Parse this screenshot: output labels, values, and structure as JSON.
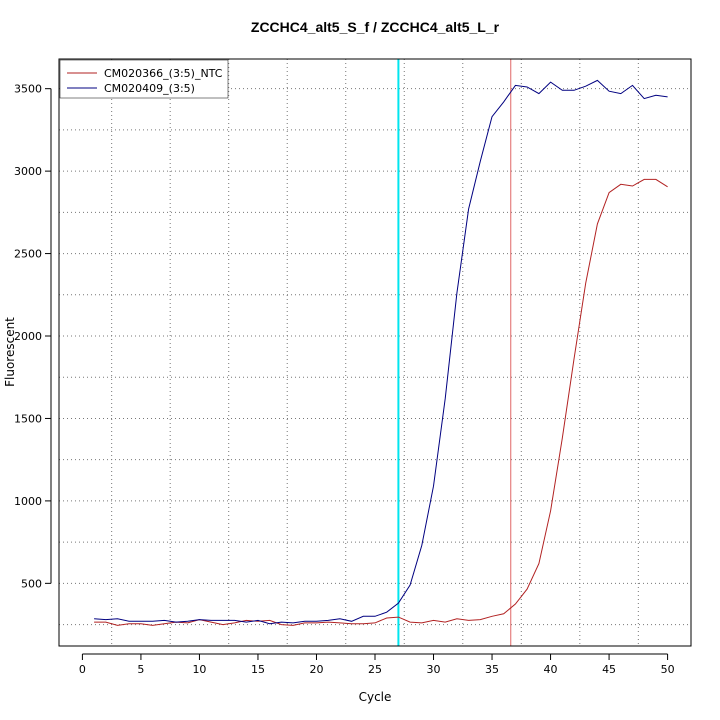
{
  "chart_data": {
    "type": "line",
    "title": "ZCCHC4_alt5_S_f / ZCCHC4_alt5_L_r",
    "xlabel": "Cycle",
    "ylabel": "Fluorescent",
    "xlim": [
      -2,
      52
    ],
    "ylim": [
      120,
      3680
    ],
    "xticks": [
      0,
      5,
      10,
      15,
      20,
      25,
      30,
      35,
      40,
      45,
      50
    ],
    "yticks": [
      500,
      1000,
      1500,
      2000,
      2500,
      3000,
      3500
    ],
    "grid": true,
    "legend_position": "top-left",
    "series": [
      {
        "name": "CM020366_(3:5)_NTC",
        "color": "#b22222",
        "x": [
          1,
          2,
          3,
          4,
          5,
          6,
          7,
          8,
          9,
          10,
          11,
          12,
          13,
          14,
          15,
          16,
          17,
          18,
          19,
          20,
          21,
          22,
          23,
          24,
          25,
          26,
          27,
          28,
          29,
          30,
          31,
          32,
          33,
          34,
          35,
          36,
          37,
          38,
          39,
          40,
          41,
          42,
          43,
          44,
          45,
          46,
          47,
          48,
          49,
          50
        ],
        "values": [
          265,
          265,
          245,
          255,
          255,
          245,
          255,
          265,
          260,
          280,
          265,
          250,
          260,
          275,
          270,
          275,
          250,
          245,
          260,
          260,
          265,
          260,
          255,
          255,
          260,
          290,
          295,
          265,
          260,
          275,
          265,
          285,
          275,
          280,
          300,
          315,
          375,
          465,
          620,
          940,
          1380,
          1860,
          2320,
          2680,
          2870,
          2920,
          2910,
          2950,
          2950,
          2905
        ]
      },
      {
        "name": "CM020409_(3:5)",
        "color": "#000080",
        "x": [
          1,
          2,
          3,
          4,
          5,
          6,
          7,
          8,
          9,
          10,
          11,
          12,
          13,
          14,
          15,
          16,
          17,
          18,
          19,
          20,
          21,
          22,
          23,
          24,
          25,
          26,
          27,
          28,
          29,
          30,
          31,
          32,
          33,
          34,
          35,
          36,
          37,
          38,
          39,
          40,
          41,
          42,
          43,
          44,
          45,
          46,
          47,
          48,
          49,
          50
        ],
        "values": [
          285,
          280,
          285,
          270,
          270,
          270,
          275,
          265,
          270,
          280,
          275,
          275,
          275,
          265,
          275,
          255,
          265,
          260,
          270,
          270,
          275,
          285,
          270,
          300,
          300,
          325,
          380,
          490,
          730,
          1090,
          1620,
          2260,
          2770,
          3060,
          3330,
          3420,
          3520,
          3510,
          3470,
          3540,
          3490,
          3490,
          3515,
          3550,
          3485,
          3470,
          3520,
          3440,
          3460,
          3450
        ]
      }
    ],
    "threshold_lines": [
      {
        "x": 27.0,
        "color": "#00e5ee"
      },
      {
        "x": 36.6,
        "color": "#e06666"
      }
    ]
  }
}
